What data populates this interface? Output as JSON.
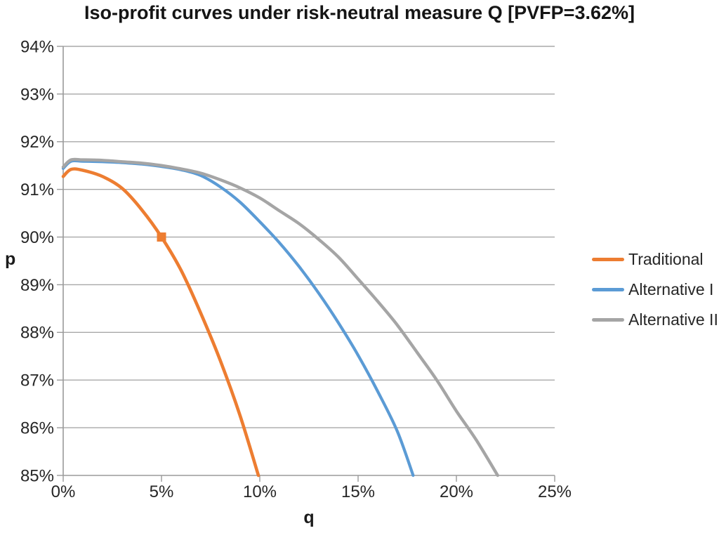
{
  "title": "Iso-profit curves under risk-neutral measure Q [PVFP=3.62%]",
  "colors": {
    "background": "#ffffff",
    "gridline": "#a8a8a8",
    "axis": "#9a9a9a",
    "tick_label": "#262626",
    "title_text": "#151515",
    "traditional": "#ED7D31",
    "alternative1": "#5B9BD5",
    "alternative2": "#A5A5A5"
  },
  "chart_data": {
    "type": "line",
    "title": "Iso-profit curves under risk-neutral measure Q [PVFP=3.62%]",
    "xlabel": "q",
    "ylabel": "p",
    "xlim": [
      0,
      25
    ],
    "ylim": [
      85,
      94
    ],
    "grid": "horizontal",
    "legend_position": "right",
    "x_ticks": [
      {
        "value": 0,
        "label": "0%"
      },
      {
        "value": 5,
        "label": "5%"
      },
      {
        "value": 10,
        "label": "10%"
      },
      {
        "value": 15,
        "label": "15%"
      },
      {
        "value": 20,
        "label": "20%"
      },
      {
        "value": 25,
        "label": "25%"
      }
    ],
    "y_ticks": [
      {
        "value": 94,
        "label": "94%"
      },
      {
        "value": 93,
        "label": "93%"
      },
      {
        "value": 92,
        "label": "92%"
      },
      {
        "value": 91,
        "label": "91%"
      },
      {
        "value": 90,
        "label": "90%"
      },
      {
        "value": 89,
        "label": "89%"
      },
      {
        "value": 88,
        "label": "88%"
      },
      {
        "value": 87,
        "label": "87%"
      },
      {
        "value": 86,
        "label": "86%"
      },
      {
        "value": 85,
        "label": "85%"
      }
    ],
    "series": [
      {
        "name": "Traditional",
        "color": "#ED7D31",
        "stroke_width": 4.6,
        "marker": {
          "q": 5,
          "p": 90,
          "shape": "square",
          "size": 13
        },
        "points": [
          [
            0,
            91.27
          ],
          [
            0.4,
            91.42
          ],
          [
            1,
            91.4
          ],
          [
            2,
            91.27
          ],
          [
            3,
            91.02
          ],
          [
            4,
            90.57
          ],
          [
            5,
            90.0
          ],
          [
            6,
            89.3
          ],
          [
            7,
            88.4
          ],
          [
            8,
            87.4
          ],
          [
            9,
            86.25
          ],
          [
            9.93,
            85.0
          ]
        ]
      },
      {
        "name": "Alternative I",
        "color": "#5B9BD5",
        "stroke_width": 4.2,
        "marker": null,
        "points": [
          [
            0,
            91.44
          ],
          [
            0.4,
            91.59
          ],
          [
            1,
            91.59
          ],
          [
            2,
            91.58
          ],
          [
            3,
            91.56
          ],
          [
            4,
            91.53
          ],
          [
            5,
            91.48
          ],
          [
            6,
            91.41
          ],
          [
            7,
            91.29
          ],
          [
            8,
            91.05
          ],
          [
            9,
            90.73
          ],
          [
            10,
            90.32
          ],
          [
            11,
            89.88
          ],
          [
            12,
            89.38
          ],
          [
            13,
            88.82
          ],
          [
            14,
            88.2
          ],
          [
            15,
            87.52
          ],
          [
            16,
            86.76
          ],
          [
            17,
            85.92
          ],
          [
            17.8,
            85.0
          ]
        ]
      },
      {
        "name": "Alternative II",
        "color": "#A5A5A5",
        "stroke_width": 4.4,
        "marker": null,
        "points": [
          [
            0,
            91.47
          ],
          [
            0.4,
            91.62
          ],
          [
            1,
            91.62
          ],
          [
            2,
            91.61
          ],
          [
            3,
            91.58
          ],
          [
            4,
            91.55
          ],
          [
            5,
            91.5
          ],
          [
            6,
            91.43
          ],
          [
            7,
            91.34
          ],
          [
            8,
            91.2
          ],
          [
            9,
            91.03
          ],
          [
            10,
            90.82
          ],
          [
            11,
            90.55
          ],
          [
            12,
            90.28
          ],
          [
            13,
            89.95
          ],
          [
            14,
            89.58
          ],
          [
            15,
            89.12
          ],
          [
            16,
            88.65
          ],
          [
            17,
            88.15
          ],
          [
            18,
            87.58
          ],
          [
            19,
            87.0
          ],
          [
            20,
            86.35
          ],
          [
            21,
            85.75
          ],
          [
            22.1,
            85.0
          ]
        ]
      }
    ]
  }
}
